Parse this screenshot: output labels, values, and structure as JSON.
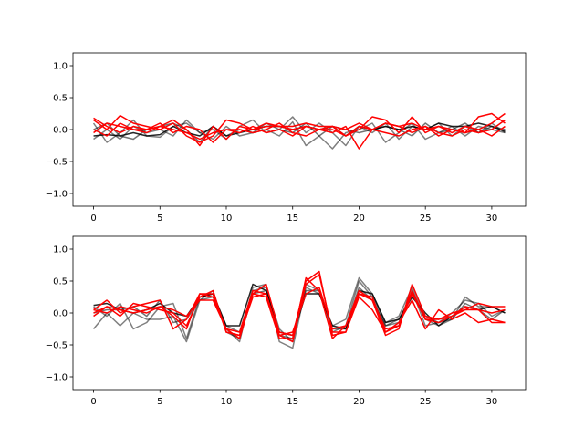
{
  "chart_data": [
    {
      "type": "line",
      "title": "",
      "xlabel": "",
      "ylabel": "",
      "xlim": [
        -1.55,
        32.55
      ],
      "ylim": [
        -1.2,
        1.2
      ],
      "xticks": [
        0,
        5,
        10,
        15,
        20,
        25,
        30
      ],
      "yticks": [
        -1.0,
        -0.5,
        0.0,
        0.5,
        1.0
      ],
      "xtick_labels": [
        "0",
        "5",
        "10",
        "15",
        "20",
        "25",
        "30"
      ],
      "ytick_labels": [
        "−1.0",
        "−0.5",
        "0.0",
        "0.5",
        "1.0"
      ],
      "grid": false,
      "x": [
        0,
        1,
        2,
        3,
        4,
        5,
        6,
        7,
        8,
        9,
        10,
        11,
        12,
        13,
        14,
        15,
        16,
        17,
        18,
        19,
        20,
        21,
        22,
        23,
        24,
        25,
        26,
        27,
        28,
        29,
        30,
        31
      ],
      "series": [
        {
          "color": "#000000",
          "alpha": 0.5,
          "values": [
            0.1,
            -0.2,
            -0.05,
            0.15,
            -0.1,
            -0.12,
            0.05,
            0.1,
            -0.05,
            -0.15,
            0.05,
            -0.1,
            -0.05,
            0.0,
            -0.1,
            0.12,
            -0.25,
            -0.1,
            -0.3,
            -0.05,
            0.0,
            0.1,
            -0.2,
            -0.05,
            0.1,
            -0.15,
            -0.05,
            0.05,
            -0.1,
            0.05,
            0.0,
            -0.05
          ]
        },
        {
          "color": "#000000",
          "alpha": 0.5,
          "values": [
            -0.15,
            0.0,
            -0.15,
            0.05,
            -0.05,
            0.0,
            -0.1,
            0.15,
            -0.05,
            0.0,
            -0.15,
            0.05,
            0.15,
            -0.05,
            0.0,
            0.2,
            -0.05,
            0.1,
            -0.05,
            -0.25,
            0.05,
            -0.05,
            0.1,
            -0.15,
            0.05,
            0.0,
            0.1,
            -0.1,
            0.05,
            -0.05,
            0.1,
            -0.05
          ]
        },
        {
          "color": "#000000",
          "alpha": 0.55,
          "values": [
            0.0,
            0.1,
            -0.1,
            -0.15,
            0.0,
            0.05,
            0.1,
            0.0,
            -0.2,
            0.05,
            -0.1,
            0.0,
            -0.05,
            0.1,
            0.0,
            -0.05,
            0.1,
            -0.1,
            0.05,
            0.0,
            -0.05,
            0.0,
            0.05,
            0.0,
            -0.1,
            0.1,
            -0.05,
            0.0,
            0.1,
            -0.05,
            0.05,
            0.0
          ]
        },
        {
          "color": "#000000",
          "alpha": 0.85,
          "values": [
            -0.1,
            -0.08,
            -0.1,
            -0.05,
            -0.1,
            -0.08,
            0.05,
            -0.05,
            -0.1,
            0.05,
            -0.1,
            -0.05,
            0.0,
            0.05,
            0.05,
            0.0,
            0.05,
            0.0,
            0.05,
            -0.1,
            0.05,
            0.0,
            0.05,
            0.0,
            0.05,
            0.0,
            0.1,
            0.05,
            0.05,
            0.1,
            0.05,
            -0.03
          ]
        },
        {
          "color": "#ff0000",
          "alpha": 1,
          "values": [
            0.18,
            0.05,
            -0.05,
            0.05,
            0.0,
            0.05,
            0.15,
            0.0,
            -0.25,
            0.05,
            -0.15,
            0.05,
            0.0,
            0.1,
            0.05,
            0.05,
            0.1,
            0.05,
            0.05,
            0.0,
            0.1,
            0.0,
            0.1,
            0.05,
            0.1,
            0.0,
            0.05,
            0.0,
            -0.05,
            0.2,
            0.25,
            0.1
          ]
        },
        {
          "color": "#ff0000",
          "alpha": 1,
          "values": [
            0.15,
            0.0,
            0.22,
            0.1,
            0.05,
            0.0,
            0.1,
            -0.1,
            -0.2,
            -0.1,
            0.15,
            0.1,
            0.0,
            0.05,
            0.05,
            0.0,
            0.05,
            0.0,
            0.0,
            -0.1,
            0.0,
            0.2,
            0.15,
            -0.05,
            0.2,
            -0.05,
            0.05,
            -0.05,
            0.05,
            0.0,
            0.1,
            0.25
          ]
        },
        {
          "color": "#ff0000",
          "alpha": 1,
          "values": [
            -0.05,
            0.1,
            0.05,
            0.0,
            -0.05,
            0.05,
            0.0,
            -0.05,
            -0.15,
            -0.05,
            0.0,
            -0.05,
            0.05,
            -0.05,
            0.0,
            -0.1,
            0.05,
            0.0,
            0.05,
            -0.1,
            0.05,
            0.0,
            0.1,
            0.05,
            -0.05,
            0.05,
            -0.1,
            0.0,
            -0.05,
            0.0,
            -0.1,
            0.05
          ]
        },
        {
          "color": "#ff0000",
          "alpha": 1,
          "values": [
            0.0,
            -0.1,
            0.1,
            0.0,
            0.0,
            0.1,
            -0.05,
            0.05,
            0.0,
            -0.2,
            0.0,
            0.0,
            -0.05,
            0.0,
            0.1,
            -0.05,
            -0.1,
            0.0,
            -0.05,
            0.05,
            -0.3,
            0.0,
            -0.05,
            -0.1,
            0.0,
            0.05,
            -0.05,
            -0.1,
            0.0,
            -0.05,
            0.0,
            0.15
          ]
        }
      ]
    },
    {
      "type": "line",
      "title": "",
      "xlabel": "",
      "ylabel": "",
      "xlim": [
        -1.55,
        32.55
      ],
      "ylim": [
        -1.2,
        1.2
      ],
      "xticks": [
        0,
        5,
        10,
        15,
        20,
        25,
        30
      ],
      "yticks": [
        -1.0,
        -0.5,
        0.0,
        0.5,
        1.0
      ],
      "xtick_labels": [
        "0",
        "5",
        "10",
        "15",
        "20",
        "25",
        "30"
      ],
      "ytick_labels": [
        "−1.0",
        "−0.5",
        "0.0",
        "0.5",
        "1.0"
      ],
      "grid": false,
      "x": [
        0,
        1,
        2,
        3,
        4,
        5,
        6,
        7,
        8,
        9,
        10,
        11,
        12,
        13,
        14,
        15,
        16,
        17,
        18,
        19,
        20,
        21,
        22,
        23,
        24,
        25,
        26,
        27,
        28,
        29,
        30,
        31
      ],
      "series": [
        {
          "color": "#000000",
          "alpha": 0.5,
          "values": [
            -0.25,
            0.0,
            -0.2,
            0.0,
            -0.1,
            -0.1,
            -0.05,
            -0.45,
            0.2,
            0.25,
            -0.25,
            -0.45,
            0.4,
            0.45,
            -0.45,
            -0.55,
            0.4,
            0.3,
            -0.2,
            -0.1,
            0.55,
            0.3,
            -0.15,
            -0.05,
            0.4,
            -0.1,
            -0.2,
            -0.1,
            0.25,
            0.1,
            0.1,
            0.0
          ]
        },
        {
          "color": "#000000",
          "alpha": 0.5,
          "values": [
            0.1,
            -0.05,
            0.15,
            -0.25,
            -0.15,
            0.1,
            0.15,
            -0.4,
            0.25,
            0.3,
            -0.2,
            -0.3,
            0.35,
            0.4,
            -0.25,
            -0.45,
            0.45,
            0.35,
            -0.3,
            -0.2,
            0.5,
            0.25,
            -0.2,
            -0.15,
            0.35,
            -0.2,
            -0.15,
            0.0,
            0.2,
            0.15,
            -0.05,
            0.05
          ]
        },
        {
          "color": "#000000",
          "alpha": 0.55,
          "values": [
            0.0,
            0.05,
            0.05,
            0.1,
            -0.05,
            0.2,
            -0.15,
            -0.1,
            0.2,
            0.35,
            -0.3,
            -0.4,
            0.3,
            0.35,
            -0.35,
            -0.4,
            0.35,
            0.35,
            -0.25,
            -0.25,
            0.4,
            0.2,
            -0.2,
            -0.1,
            0.3,
            -0.05,
            -0.15,
            -0.1,
            0.15,
            0.05,
            -0.1,
            0.05
          ]
        },
        {
          "color": "#000000",
          "alpha": 0.85,
          "values": [
            0.12,
            0.15,
            0.05,
            0.0,
            0.05,
            0.15,
            0.0,
            -0.05,
            0.25,
            0.3,
            -0.2,
            -0.2,
            0.45,
            0.35,
            -0.3,
            -0.35,
            0.3,
            0.3,
            -0.2,
            -0.25,
            0.35,
            0.3,
            -0.15,
            -0.1,
            0.25,
            0.0,
            -0.2,
            -0.05,
            0.1,
            0.05,
            0.1,
            0.0
          ]
        },
        {
          "color": "#ff0000",
          "alpha": 1,
          "values": [
            0.05,
            0.2,
            0.0,
            0.1,
            0.15,
            0.2,
            -0.25,
            -0.1,
            0.3,
            0.25,
            -0.25,
            -0.4,
            0.3,
            0.25,
            -0.4,
            -0.4,
            0.55,
            0.35,
            -0.4,
            -0.2,
            0.35,
            0.2,
            -0.35,
            -0.25,
            0.45,
            -0.05,
            -0.1,
            0.0,
            0.05,
            0.15,
            0.1,
            0.1
          ]
        },
        {
          "color": "#ff0000",
          "alpha": 1,
          "values": [
            -0.05,
            0.1,
            -0.05,
            0.15,
            0.1,
            0.05,
            0.0,
            -0.2,
            0.25,
            0.35,
            -0.3,
            -0.35,
            0.25,
            0.3,
            -0.35,
            -0.45,
            0.45,
            0.6,
            -0.3,
            -0.3,
            0.25,
            0.05,
            -0.3,
            -0.15,
            0.2,
            -0.25,
            0.05,
            -0.1,
            0.0,
            -0.15,
            -0.1,
            -0.15
          ]
        },
        {
          "color": "#ff0000",
          "alpha": 1,
          "values": [
            0.05,
            0.0,
            0.1,
            0.05,
            0.0,
            0.1,
            0.05,
            -0.05,
            0.2,
            0.2,
            -0.25,
            -0.3,
            0.35,
            0.3,
            -0.35,
            -0.3,
            0.3,
            0.4,
            -0.25,
            -0.2,
            0.3,
            0.2,
            -0.25,
            -0.2,
            0.3,
            -0.1,
            -0.1,
            -0.05,
            0.1,
            0.05,
            0.0,
            0.05
          ]
        },
        {
          "color": "#ff0000",
          "alpha": 1,
          "values": [
            0.0,
            0.1,
            0.05,
            0.0,
            0.05,
            0.1,
            -0.05,
            -0.25,
            0.3,
            0.3,
            -0.3,
            -0.35,
            0.3,
            0.45,
            -0.3,
            -0.35,
            0.5,
            0.65,
            -0.35,
            -0.3,
            0.3,
            0.25,
            -0.3,
            -0.2,
            0.35,
            -0.1,
            -0.15,
            -0.05,
            0.05,
            0.05,
            -0.15,
            -0.15
          ]
        }
      ]
    }
  ]
}
